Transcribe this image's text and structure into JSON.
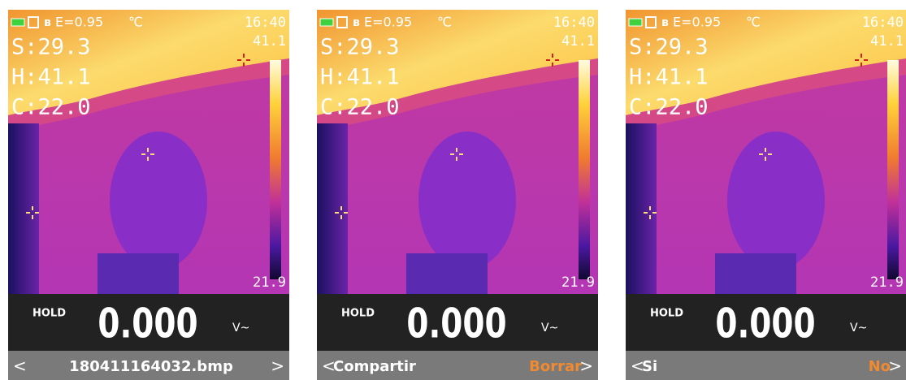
{
  "screens": [
    {
      "emissivity": "E=0.95",
      "unit": "℃",
      "time": "16:40",
      "s": "S:29.3",
      "h": "H:41.1",
      "c": "C:22.0",
      "scale_max": "41.1",
      "scale_min": "21.9",
      "hold": "HOLD",
      "reading": "0.000",
      "mode": "V~",
      "left_arrow": "<",
      "center_label": "180411164032.bmp",
      "right_arrow": ">"
    },
    {
      "emissivity": "E=0.95",
      "unit": "℃",
      "time": "16:40",
      "s": "S:29.3",
      "h": "H:41.1",
      "c": "C:22.0",
      "scale_max": "41.1",
      "scale_min": "21.9",
      "hold": "HOLD",
      "reading": "0.000",
      "mode": "V~",
      "left_arrow": "<",
      "left_label": "Compartir",
      "right_label": "Borrar",
      "right_arrow": ">"
    },
    {
      "emissivity": "E=0.95",
      "unit": "℃",
      "time": "16:40",
      "s": "S:29.3",
      "h": "H:41.1",
      "c": "C:22.0",
      "scale_max": "41.1",
      "scale_min": "21.9",
      "hold": "HOLD",
      "reading": "0.000",
      "mode": "V~",
      "left_arrow": "<",
      "left_label": "Si",
      "right_label": "No",
      "right_arrow": ">"
    }
  ]
}
